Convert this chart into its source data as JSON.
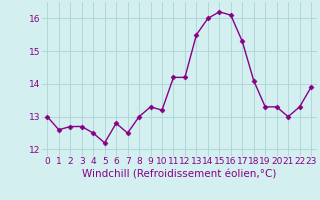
{
  "x": [
    0,
    1,
    2,
    3,
    4,
    5,
    6,
    7,
    8,
    9,
    10,
    11,
    12,
    13,
    14,
    15,
    16,
    17,
    18,
    19,
    20,
    21,
    22,
    23
  ],
  "y": [
    13.0,
    12.6,
    12.7,
    12.7,
    12.5,
    12.2,
    12.8,
    12.5,
    13.0,
    13.3,
    13.2,
    14.2,
    14.2,
    15.5,
    16.0,
    16.2,
    16.1,
    15.3,
    14.1,
    13.3,
    13.3,
    13.0,
    13.3,
    13.9
  ],
  "line_color": "#880088",
  "marker": "D",
  "marker_size": 2.5,
  "bg_color": "#d4efef",
  "grid_color": "#b0d8d8",
  "xlabel": "Windchill (Refroidissement éolien,°C)",
  "xlabel_color": "#880088",
  "ylim": [
    11.8,
    16.5
  ],
  "yticks": [
    12,
    13,
    14,
    15,
    16
  ],
  "xticks": [
    0,
    1,
    2,
    3,
    4,
    5,
    6,
    7,
    8,
    9,
    10,
    11,
    12,
    13,
    14,
    15,
    16,
    17,
    18,
    19,
    20,
    21,
    22,
    23
  ],
  "tick_color": "#880088",
  "tick_fontsize": 6.5,
  "xlabel_fontsize": 7.5,
  "linewidth": 1.0
}
